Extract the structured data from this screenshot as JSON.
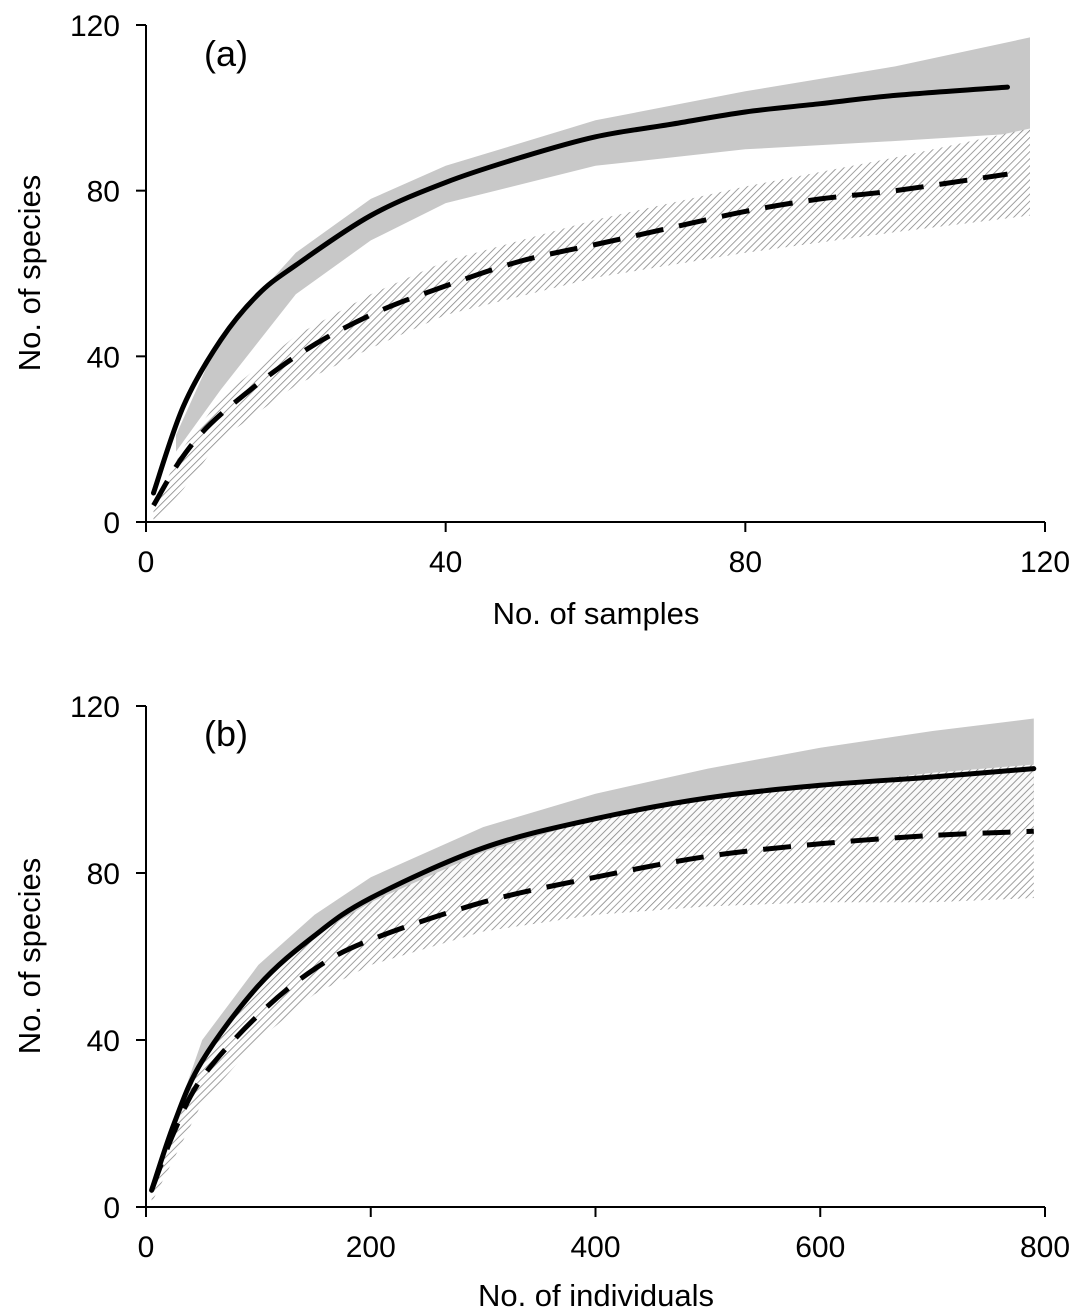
{
  "chart_data": [
    {
      "type": "line",
      "panel_label": "(a)",
      "xlabel": "No. of samples",
      "ylabel": "No. of species",
      "xlim": [
        0,
        120
      ],
      "ylim": [
        0,
        120
      ],
      "xticks": [
        "0",
        "40",
        "80",
        "120"
      ],
      "yticks": [
        "0",
        "40",
        "80",
        "120"
      ],
      "grid": false,
      "legend": "none",
      "series": [
        {
          "style": "solid",
          "color": "#000000",
          "x": [
            1,
            5,
            10,
            15,
            20,
            30,
            40,
            50,
            60,
            70,
            80,
            90,
            100,
            115
          ],
          "y": [
            7,
            28,
            44,
            55,
            62,
            74,
            82,
            88,
            93,
            96,
            99,
            101,
            103,
            105
          ],
          "band_color": "#c8c8c8",
          "band_x": [
            4,
            10,
            20,
            30,
            40,
            60,
            80,
            100,
            118
          ],
          "band_low": [
            17,
            32,
            55,
            68,
            77,
            86,
            90,
            92,
            94
          ],
          "band_high": [
            21,
            45,
            65,
            78,
            86,
            97,
            104,
            110,
            117
          ]
        },
        {
          "style": "dashed",
          "color": "#000000",
          "x": [
            1,
            5,
            10,
            20,
            30,
            40,
            50,
            60,
            70,
            80,
            90,
            100,
            115
          ],
          "y": [
            4,
            16,
            26,
            40,
            50,
            57,
            63,
            67,
            71,
            75,
            78,
            80,
            84
          ],
          "band_color": "#8c8c8c",
          "band_x": [
            1,
            5,
            10,
            20,
            30,
            40,
            60,
            80,
            100,
            118
          ],
          "band_low": [
            0,
            8,
            20,
            33,
            42,
            50,
            59,
            65,
            70,
            74
          ],
          "band_high": [
            4,
            18,
            30,
            45,
            55,
            63,
            73,
            81,
            88,
            95
          ]
        }
      ]
    },
    {
      "type": "line",
      "panel_label": "(b)",
      "xlabel": "No. of individuals",
      "ylabel": "No. of species",
      "xlim": [
        0,
        800
      ],
      "ylim": [
        0,
        120
      ],
      "xticks": [
        "0",
        "200",
        "400",
        "600",
        "800"
      ],
      "yticks": [
        "0",
        "40",
        "80",
        "120"
      ],
      "grid": false,
      "legend": "none",
      "series": [
        {
          "style": "solid",
          "color": "#000000",
          "x": [
            5,
            25,
            50,
            100,
            150,
            200,
            300,
            400,
            500,
            600,
            700,
            790
          ],
          "y": [
            4,
            20,
            35,
            53,
            65,
            74,
            86,
            93,
            98,
            101,
            103,
            105
          ],
          "band_color": "#c8c8c8",
          "band_x": [
            5,
            50,
            100,
            150,
            200,
            300,
            400,
            500,
            600,
            700,
            790
          ],
          "band_low": [
            3,
            33,
            50,
            62,
            70,
            80,
            86,
            89,
            91,
            92,
            93
          ],
          "band_high": [
            5,
            40,
            58,
            70,
            79,
            91,
            99,
            105,
            110,
            114,
            117
          ]
        },
        {
          "style": "dashed",
          "color": "#000000",
          "x": [
            5,
            25,
            50,
            100,
            150,
            200,
            300,
            400,
            500,
            600,
            700,
            790
          ],
          "y": [
            4,
            18,
            31,
            46,
            57,
            64,
            73,
            79,
            84,
            87,
            89,
            90
          ],
          "band_color": "#8c8c8c",
          "band_x": [
            5,
            50,
            100,
            150,
            200,
            300,
            400,
            500,
            600,
            700,
            790
          ],
          "band_low": [
            1,
            25,
            40,
            51,
            58,
            66,
            70,
            72,
            73,
            73,
            74
          ],
          "band_high": [
            5,
            35,
            54,
            65,
            73,
            85,
            93,
            98,
            101,
            104,
            106
          ]
        }
      ]
    }
  ]
}
